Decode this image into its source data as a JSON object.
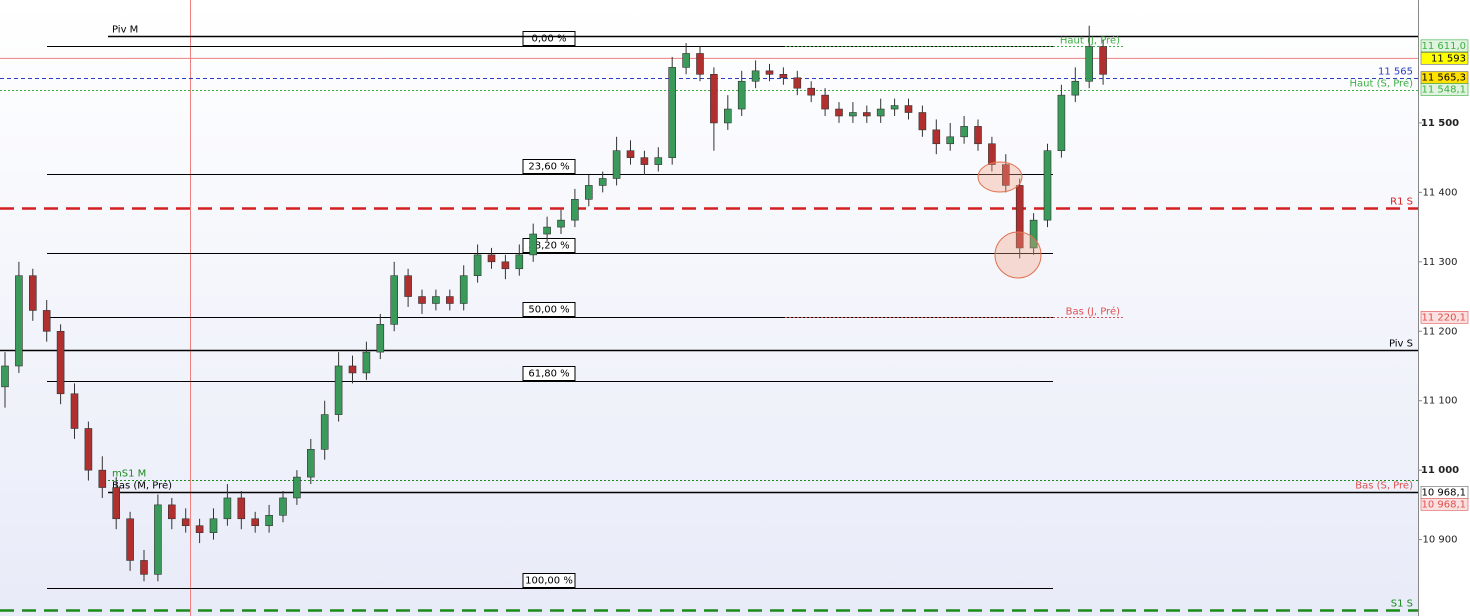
{
  "chart_data": {
    "type": "candlestick",
    "ylim": [
      10790,
      11677
    ],
    "yticks": [
      {
        "value": 10900,
        "label": "10 900"
      },
      {
        "value": 11000,
        "label": "11 000",
        "bold": true
      },
      {
        "value": 11100,
        "label": "11 100"
      },
      {
        "value": 11200,
        "label": "11 200"
      },
      {
        "value": 11300,
        "label": "11 300"
      },
      {
        "value": 11400,
        "label": "11 400"
      },
      {
        "value": 11500,
        "label": "11 500",
        "bold": true
      }
    ],
    "up_color": "#3a9a5a",
    "down_color": "#b03030",
    "open": [
      11120,
      11150,
      11280,
      11230,
      11200,
      11110,
      11060,
      11000,
      10975,
      10930,
      10870,
      10850,
      10950,
      10930,
      10920,
      10910,
      10930,
      10960,
      10930,
      10920,
      10935,
      10960,
      10990,
      11030,
      11080,
      11150,
      11140,
      11170,
      11210,
      11280,
      11250,
      11240,
      11250,
      11240,
      11280,
      11310,
      11300,
      11290,
      11310,
      11340,
      11350,
      11360,
      11390,
      11410,
      11420,
      11460,
      11450,
      11440,
      11450,
      11580,
      11600,
      11570,
      11500,
      11520,
      11560,
      11575,
      11570,
      11565,
      11550,
      11540,
      11520,
      11510,
      11515,
      11510,
      11520,
      11525,
      11515,
      11490,
      11470,
      11480,
      11495,
      11470,
      11440,
      11410,
      11320,
      11360,
      11460,
      11540,
      11560,
      11610
    ],
    "high": [
      11170,
      11300,
      11290,
      11245,
      11210,
      11125,
      11070,
      11020,
      10990,
      10940,
      10885,
      10965,
      10960,
      10945,
      10930,
      10945,
      10980,
      10970,
      10940,
      10950,
      10970,
      11000,
      11045,
      11100,
      11170,
      11165,
      11185,
      11225,
      11300,
      11290,
      11260,
      11260,
      11260,
      11295,
      11325,
      11320,
      11310,
      11325,
      11355,
      11365,
      11375,
      11405,
      11425,
      11430,
      11480,
      11475,
      11460,
      11465,
      11595,
      11615,
      11610,
      11580,
      11540,
      11575,
      11590,
      11585,
      11580,
      11575,
      11560,
      11550,
      11530,
      11530,
      11525,
      11535,
      11535,
      11535,
      11525,
      11505,
      11500,
      11510,
      11505,
      11480,
      11455,
      11420,
      11370,
      11470,
      11555,
      11580,
      11640,
      11620
    ],
    "low": [
      11090,
      11140,
      11215,
      11185,
      11095,
      11045,
      10985,
      10960,
      10915,
      10855,
      10840,
      10840,
      10915,
      10910,
      10895,
      10900,
      10920,
      10915,
      10910,
      10910,
      10925,
      10950,
      10980,
      11015,
      11070,
      11125,
      11130,
      11160,
      11200,
      11235,
      11225,
      11230,
      11230,
      11230,
      11270,
      11290,
      11275,
      11280,
      11300,
      11330,
      11340,
      11350,
      11380,
      11400,
      11410,
      11440,
      11425,
      11430,
      11440,
      11570,
      11560,
      11460,
      11490,
      11510,
      11550,
      11560,
      11555,
      11540,
      11530,
      11510,
      11500,
      11500,
      11500,
      11500,
      11510,
      11505,
      11480,
      11455,
      11460,
      11470,
      11460,
      11430,
      11400,
      11305,
      11310,
      11350,
      11450,
      11530,
      11550,
      11555
    ],
    "close": [
      11150,
      11280,
      11230,
      11200,
      11110,
      11060,
      11000,
      10975,
      10930,
      10870,
      10850,
      10950,
      10930,
      10920,
      10910,
      10930,
      10960,
      10930,
      10920,
      10935,
      10960,
      10990,
      11030,
      11080,
      11150,
      11140,
      11170,
      11210,
      11280,
      11250,
      11240,
      11250,
      11240,
      11280,
      11310,
      11300,
      11290,
      11310,
      11340,
      11350,
      11360,
      11390,
      11410,
      11420,
      11460,
      11450,
      11440,
      11450,
      11580,
      11600,
      11570,
      11500,
      11520,
      11560,
      11575,
      11570,
      11565,
      11550,
      11540,
      11520,
      11510,
      11515,
      11510,
      11520,
      11525,
      11515,
      11490,
      11470,
      11480,
      11495,
      11470,
      11440,
      11410,
      11320,
      11360,
      11460,
      11540,
      11560,
      11610,
      11570
    ],
    "levels": [
      {
        "name": "Piv M",
        "value": 11625,
        "color": "#000000",
        "dash": "solid",
        "label": "left"
      },
      {
        "name": "11 565",
        "value": 11565,
        "color": "#2a3fc0",
        "dash": "dash",
        "label": "right"
      },
      {
        "name": "Haut (S, Pré)",
        "value": 11548.1,
        "color": "#3cb043",
        "dash": "dot",
        "label": "right"
      },
      {
        "name": "R1 S",
        "value": 11377.5,
        "color": "#d42020",
        "dash": "long",
        "label": "right"
      },
      {
        "name": "Piv S",
        "value": 11173,
        "color": "#000000",
        "dash": "solid",
        "label": "right"
      },
      {
        "name": "mS1 M",
        "value": 10986,
        "color": "#1a8a1a",
        "dash": "dot",
        "label": "left"
      },
      {
        "name": "Bas (M, Pré)",
        "value": 10968,
        "color": "#000000",
        "dash": "solid",
        "label": "left"
      },
      {
        "name": "Bas (S, Pré)",
        "value": 10968.1,
        "color": "#e05050",
        "dash": "none",
        "label": "right"
      },
      {
        "name": "S1 S",
        "value": 10798,
        "color": "#1a8a1a",
        "dash": "long",
        "label": "right"
      }
    ],
    "day_levels": [
      {
        "name": "Haut (J, Pré)",
        "value": 11611.0,
        "color": "#3cb043"
      },
      {
        "name": "Bas (J, Pré)",
        "value": 11220.1,
        "color": "#e05050"
      }
    ],
    "fib": [
      {
        "label": "0,00 %",
        "value": 11611
      },
      {
        "label": "23,60 %",
        "value": 11427
      },
      {
        "label": "38,20 %",
        "value": 11313
      },
      {
        "label": "50,00 %",
        "value": 11221
      },
      {
        "label": "61,80 %",
        "value": 11129
      },
      {
        "label": "100,00 %",
        "value": 10831
      }
    ],
    "price_tags": [
      {
        "label": "11 611,0",
        "value": 11611.0,
        "bg": "#dff3df",
        "color": "#3cb043"
      },
      {
        "label": "11 593",
        "value": 11593,
        "bg": "#ffff00",
        "color": "#000000"
      },
      {
        "label": "11 565,3",
        "value": 11565.3,
        "bg": "#ffe000",
        "color": "#000000"
      },
      {
        "label": "11 548,1",
        "value": 11548.1,
        "bg": "#dff3df",
        "color": "#3cb043"
      },
      {
        "label": "11 220,1",
        "value": 11220.1,
        "bg": "#fbe0e0",
        "color": "#e05050"
      },
      {
        "label": "10 968,1",
        "value": 10968.1,
        "bg": "#ffffff",
        "color": "#000000"
      },
      {
        "label": "10 968,1",
        "value": 10968.1,
        "bg": "#fbe0e0",
        "color": "#e05050"
      }
    ],
    "cursor_price": 11593
  }
}
